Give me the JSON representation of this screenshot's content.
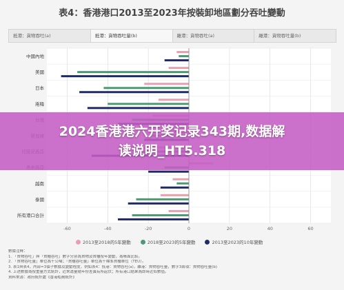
{
  "title": "表4：香港港口2013至2023年按裝卸地區劃分吞吐變動",
  "tabs": [
    {
      "label": "抵港：貨物吞吐(a)",
      "active": false
    },
    {
      "label": "抵港：貨物吞吐量(b)",
      "active": true
    },
    {
      "label": "離港：貨物吞吐(a)",
      "active": false
    },
    {
      "label": "離港：貨物吞吐量(b)",
      "active": false
    }
  ],
  "colors": {
    "series_2013_2018": "#e8a0b0",
    "series_2018_2023": "#4a9a72",
    "series_2013_2023": "#1f2a66",
    "grid": "#d8d8d8"
  },
  "chart_data": {
    "type": "bar",
    "orientation": "horizontal",
    "categories": [
      "中國內地",
      "美國",
      "日本",
      "南韓",
      "台灣",
      "新加坡",
      "印度尼西亞",
      "馬來西亞",
      "越南",
      "泰國",
      "所有港口合計"
    ],
    "series": [
      {
        "name": "2013至2018的5年變動",
        "color": "#e8a0b0",
        "values": [
          -6,
          -10,
          -22,
          -15,
          -18,
          -12,
          -35,
          12,
          -8,
          -14,
          -10
        ]
      },
      {
        "name": "2018至2023的5年變動",
        "color": "#4a9a72",
        "values": [
          -5,
          -55,
          -42,
          -40,
          -28,
          -18,
          -25,
          -12,
          -6,
          -26,
          -28
        ]
      },
      {
        "name": "2013至2023的10年變動",
        "color": "#1f2a66",
        "values": [
          -12,
          -63,
          -54,
          -50,
          -35,
          -22,
          -48,
          -20,
          -14,
          -30,
          -35
        ]
      }
    ],
    "xlim": [
      -70,
      70
    ],
    "xticks": [
      -60,
      -40,
      -20,
      0,
      20,
      40,
      60
    ],
    "grid": true,
    "legend": "bottom"
  },
  "notes": [
    "數據注釋：",
    "1. 「貨物吞吐」與「貨櫃吞吐」數字分別為貨物及貨櫃按年變動，為賬面比較。",
    "2. 「貨物吞吐量」單位為千公噸；「貨櫃吞吐量」單位為千標準貨櫃單位（TEU）。",
    "3. 表1與表4，內部=3個子數據及變動程度，例如表4：抵港：貨物吞吐(a)，離港：貨物吞吐量，數字3兩項：貨物吞吐量(b)",
    "4. 上述數據為按重量方式統計，近來運量隨年份差異有所起伏；所有港口結果為即時近似數值。",
    "資料來源：政府統計處《香港船務統計》"
  ],
  "overlay": {
    "line1": "2024香港港六开奖记录343期,数据解",
    "line2": "读说明_HT5.318"
  }
}
